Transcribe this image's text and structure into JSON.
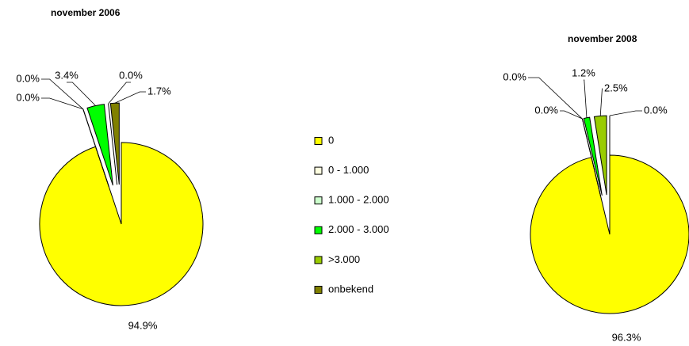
{
  "chart_data": [
    {
      "type": "pie",
      "title": "november 2006",
      "categories": [
        "0",
        "0 - 1.000",
        "1.000 - 2.000",
        "2.000 - 3.000",
        ">3.000",
        "onbekend"
      ],
      "colors": [
        "#ffff00",
        "#ffffe0",
        "#ccffcc",
        "#00ff00",
        "#99cc00",
        "#808000"
      ],
      "values": [
        94.9,
        0.0,
        0.0,
        3.4,
        0.0,
        1.7
      ],
      "value_labels": [
        "94.9%",
        "0.0%",
        "0.0%",
        "3.4%",
        "0.0%",
        "1.7%"
      ]
    },
    {
      "type": "pie",
      "title": "november 2008",
      "categories": [
        "0",
        "0 - 1.000",
        "1.000 - 2.000",
        "2.000 - 3.000",
        ">3.000",
        "onbekend"
      ],
      "colors": [
        "#ffff00",
        "#ffffe0",
        "#ccffcc",
        "#00ff00",
        "#99cc00",
        "#808000"
      ],
      "values": [
        96.3,
        0.0,
        0.0,
        1.2,
        2.5,
        0.0
      ],
      "value_labels": [
        "96.3%",
        "0.0%",
        "0.0%",
        "1.2%",
        "2.5%",
        "0.0%"
      ]
    }
  ]
}
